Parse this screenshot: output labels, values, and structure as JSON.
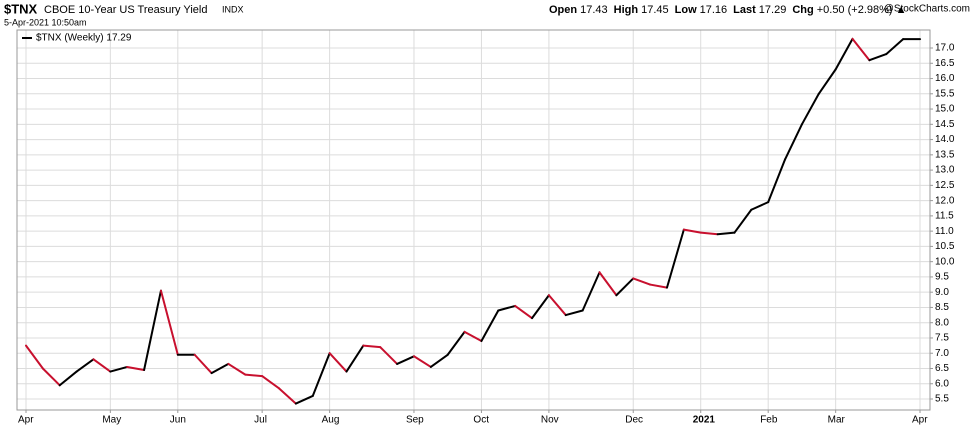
{
  "chart_data": {
    "type": "line",
    "symbol": "$TNX",
    "name": "CBOE 10-Year US Treasury Yield",
    "exchange": "INDX",
    "date": "5-Apr-2021 10:50am",
    "source": "@StockCharts.com",
    "quote": [
      [
        "Open",
        "17.43"
      ],
      [
        "High",
        "17.45"
      ],
      [
        "Low",
        "17.16"
      ],
      [
        "Last",
        "17.29"
      ],
      [
        "Chg",
        "+0.50 (+2.98%) ▲"
      ]
    ],
    "legend": "$TNX (Weekly) 17.29",
    "categories": [
      "Apr",
      null,
      null,
      null,
      null,
      "May",
      null,
      null,
      null,
      "Jun",
      null,
      null,
      null,
      null,
      "Jul",
      null,
      null,
      null,
      "Aug",
      null,
      null,
      null,
      null,
      "Sep",
      null,
      null,
      null,
      "Oct",
      null,
      null,
      null,
      "Nov",
      null,
      null,
      null,
      null,
      "Dec",
      null,
      null,
      null,
      "2021",
      null,
      null,
      null,
      "Feb",
      null,
      null,
      null,
      "Mar",
      null,
      null,
      null,
      null,
      "Apr"
    ],
    "values": [
      7.25,
      6.5,
      5.95,
      6.4,
      6.8,
      6.4,
      6.55,
      6.45,
      9.05,
      6.95,
      6.95,
      6.35,
      6.65,
      6.3,
      6.25,
      5.85,
      5.35,
      5.6,
      7.0,
      6.4,
      7.25,
      7.2,
      6.65,
      6.9,
      6.55,
      6.95,
      7.7,
      7.4,
      8.4,
      8.55,
      8.15,
      8.9,
      8.25,
      8.4,
      9.65,
      8.9,
      9.45,
      9.25,
      9.15,
      11.05,
      10.95,
      10.9,
      10.95,
      11.7,
      11.95,
      13.35,
      14.5,
      15.5,
      16.3,
      17.3,
      16.6,
      16.8,
      17.29,
      17.29
    ],
    "color": "#000000",
    "down_color": "#c8102e",
    "ylim": [
      5.14,
      17.59
    ],
    "yticks": [
      5.5,
      {
        "value": 6,
        "label": "6.0"
      },
      6.5,
      {
        "value": 7,
        "label": "7.0"
      },
      7.5,
      {
        "value": 8,
        "label": "8.0"
      },
      8.5,
      {
        "value": 9,
        "label": "9.0"
      },
      9.5,
      {
        "value": 10,
        "label": "10.0"
      },
      10.5,
      {
        "value": 11,
        "label": "11.0"
      },
      11.5,
      {
        "value": 12,
        "label": "12.0"
      },
      12.5,
      {
        "value": 13,
        "label": "13.0"
      },
      13.5,
      {
        "value": 14,
        "label": "14.0"
      },
      14.5,
      {
        "value": 15,
        "label": "15.0"
      },
      15.5,
      {
        "value": 16,
        "label": "16.0"
      },
      16.5,
      {
        "value": 17,
        "label": "17.0"
      }
    ],
    "grid": true
  }
}
